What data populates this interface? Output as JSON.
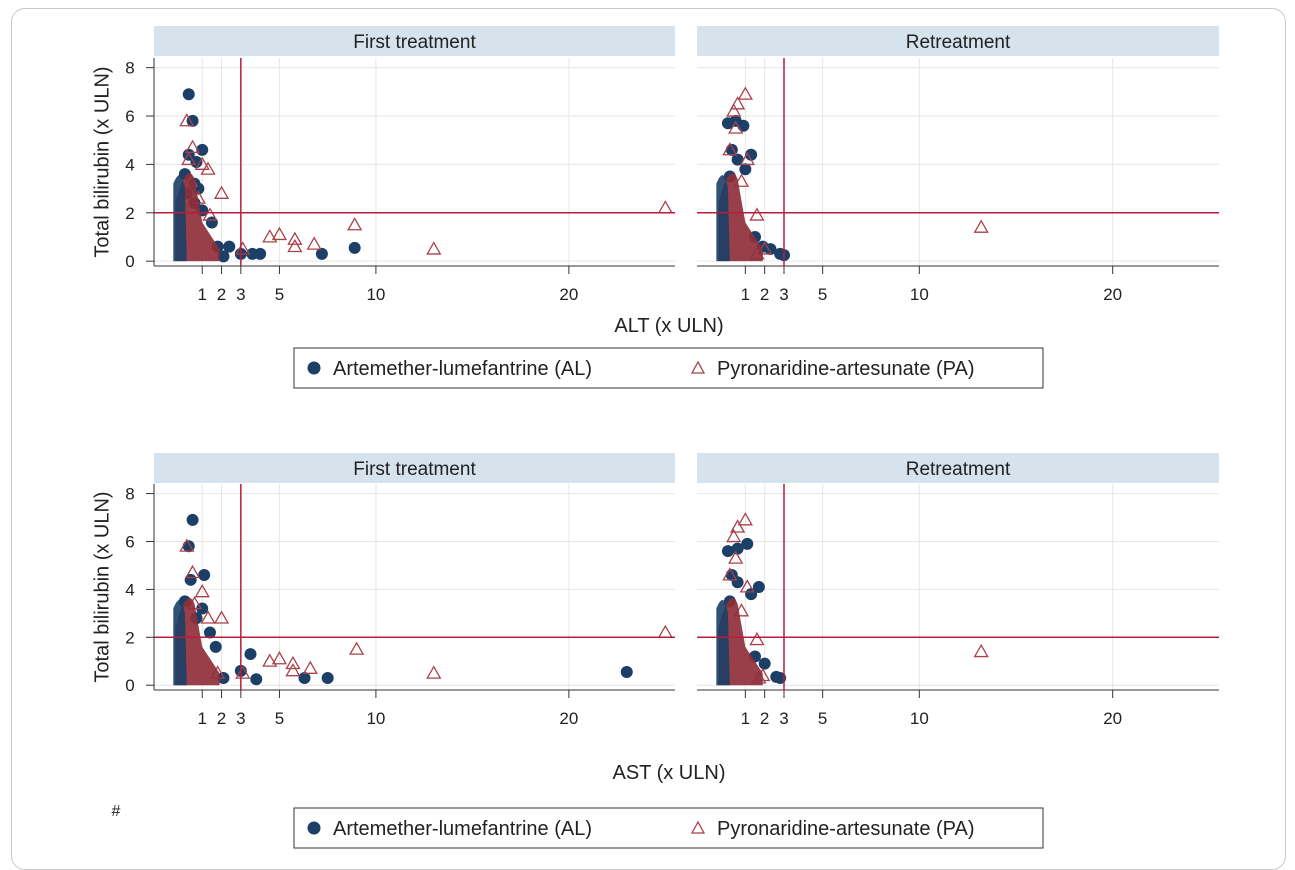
{
  "colors": {
    "al": "#1b3f66",
    "pa_stroke": "#a8424a",
    "pa_fill": "#8f2f3b",
    "refline": "#b81c3d",
    "strip": "#d6e3ec",
    "grid": "#e6e6e6"
  },
  "footnote": "#",
  "chart_data": [
    {
      "type": "scatter",
      "xlabel": "ALT (x ULN)",
      "ylabel": "Total bilirubin (x ULN)",
      "xlim": [
        -1.5,
        25.5
      ],
      "ylim": [
        -0.2,
        8.4
      ],
      "xticks": [
        1,
        2,
        3,
        5,
        10,
        20
      ],
      "yticks": [
        0,
        2,
        4,
        6,
        8
      ],
      "reference_lines": {
        "x": 3,
        "y": 2
      },
      "grid": true,
      "legend": {
        "position": "bottom",
        "entries": [
          "Artemether-lumefantrine (AL)",
          "Pyronaridine-artesunate (PA)"
        ]
      },
      "panels": [
        {
          "title": "First treatment",
          "series": [
            {
              "name": "Artemether-lumefantrine (AL)",
              "marker": "circle",
              "points": [
                [
                  0.3,
                  6.9
                ],
                [
                  0.5,
                  5.8
                ],
                [
                  1.0,
                  4.6
                ],
                [
                  0.3,
                  4.4
                ],
                [
                  0.7,
                  4.1
                ],
                [
                  0.1,
                  3.6
                ],
                [
                  1.0,
                  2.1
                ],
                [
                  0.6,
                  2.4
                ],
                [
                  1.5,
                  1.6
                ],
                [
                  1.8,
                  0.6
                ],
                [
                  2.4,
                  0.6
                ],
                [
                  2.1,
                  0.2
                ],
                [
                  3.0,
                  0.3
                ],
                [
                  3.6,
                  0.3
                ],
                [
                  4.0,
                  0.3
                ],
                [
                  7.2,
                  0.3
                ],
                [
                  8.9,
                  0.55
                ],
                [
                  0.6,
                  3.2
                ],
                [
                  0.2,
                  2.8
                ],
                [
                  0.8,
                  3.0
                ]
              ]
            },
            {
              "name": "Pyronaridine-artesunate (PA)",
              "marker": "triangle",
              "points": [
                [
                  0.2,
                  5.8
                ],
                [
                  0.5,
                  4.7
                ],
                [
                  1.0,
                  4.0
                ],
                [
                  1.3,
                  3.8
                ],
                [
                  0.4,
                  3.3
                ],
                [
                  1.4,
                  1.9
                ],
                [
                  2.0,
                  2.8
                ],
                [
                  3.1,
                  0.5
                ],
                [
                  4.5,
                  1.0
                ],
                [
                  5.0,
                  1.1
                ],
                [
                  5.8,
                  0.9
                ],
                [
                  5.8,
                  0.6
                ],
                [
                  6.8,
                  0.7
                ],
                [
                  8.9,
                  1.5
                ],
                [
                  13.0,
                  0.5
                ],
                [
                  25.0,
                  2.2
                ],
                [
                  0.8,
                  2.6
                ],
                [
                  0.3,
                  4.2
                ]
              ]
            }
          ]
        },
        {
          "title": "Retreatment",
          "series": [
            {
              "name": "Artemether-lumefantrine (AL)",
              "marker": "circle",
              "points": [
                [
                  0.1,
                  5.7
                ],
                [
                  0.5,
                  5.8
                ],
                [
                  0.9,
                  5.6
                ],
                [
                  1.3,
                  4.4
                ],
                [
                  0.3,
                  4.6
                ],
                [
                  0.6,
                  4.2
                ],
                [
                  1.0,
                  3.8
                ],
                [
                  1.9,
                  0.6
                ],
                [
                  2.3,
                  0.5
                ],
                [
                  2.8,
                  0.3
                ],
                [
                  3.0,
                  0.25
                ],
                [
                  0.2,
                  3.5
                ],
                [
                  1.5,
                  1.0
                ]
              ]
            },
            {
              "name": "Pyronaridine-artesunate (PA)",
              "marker": "triangle",
              "points": [
                [
                  1.0,
                  6.9
                ],
                [
                  0.6,
                  6.5
                ],
                [
                  0.4,
                  6.2
                ],
                [
                  0.2,
                  4.6
                ],
                [
                  1.1,
                  4.2
                ],
                [
                  1.6,
                  1.9
                ],
                [
                  2.0,
                  0.5
                ],
                [
                  1.6,
                  0.3
                ],
                [
                  13.2,
                  1.4
                ],
                [
                  0.5,
                  5.5
                ],
                [
                  0.8,
                  3.3
                ]
              ]
            }
          ]
        }
      ]
    },
    {
      "type": "scatter",
      "xlabel": "AST (x ULN)",
      "ylabel": "Total bilirubin (x ULN)",
      "xlim": [
        -1.5,
        25.5
      ],
      "ylim": [
        -0.2,
        8.4
      ],
      "xticks": [
        1,
        2,
        3,
        5,
        10,
        20
      ],
      "yticks": [
        0,
        2,
        4,
        6,
        8
      ],
      "reference_lines": {
        "x": 3,
        "y": 2
      },
      "grid": true,
      "legend": {
        "position": "bottom",
        "entries": [
          "Artemether-lumefantrine (AL)",
          "Pyronaridine-artesunate (PA)"
        ]
      },
      "panels": [
        {
          "title": "First treatment",
          "series": [
            {
              "name": "Artemether-lumefantrine (AL)",
              "marker": "circle",
              "points": [
                [
                  0.5,
                  6.9
                ],
                [
                  0.3,
                  5.8
                ],
                [
                  1.1,
                  4.6
                ],
                [
                  0.4,
                  4.4
                ],
                [
                  0.1,
                  3.5
                ],
                [
                  1.0,
                  3.2
                ],
                [
                  1.7,
                  1.6
                ],
                [
                  2.1,
                  0.3
                ],
                [
                  3.0,
                  0.6
                ],
                [
                  3.5,
                  1.3
                ],
                [
                  3.8,
                  0.25
                ],
                [
                  6.3,
                  0.3
                ],
                [
                  7.5,
                  0.3
                ],
                [
                  23.0,
                  0.55
                ],
                [
                  0.7,
                  2.8
                ],
                [
                  1.4,
                  2.2
                ]
              ]
            },
            {
              "name": "Pyronaridine-artesunate (PA)",
              "marker": "triangle",
              "points": [
                [
                  0.2,
                  5.8
                ],
                [
                  0.5,
                  4.7
                ],
                [
                  1.0,
                  3.9
                ],
                [
                  1.3,
                  2.8
                ],
                [
                  1.8,
                  0.5
                ],
                [
                  2.0,
                  2.8
                ],
                [
                  3.1,
                  0.5
                ],
                [
                  4.5,
                  1.0
                ],
                [
                  5.0,
                  1.1
                ],
                [
                  5.7,
                  0.9
                ],
                [
                  5.7,
                  0.6
                ],
                [
                  6.6,
                  0.7
                ],
                [
                  9.0,
                  1.5
                ],
                [
                  13.0,
                  0.5
                ],
                [
                  25.0,
                  2.2
                ],
                [
                  0.6,
                  3.4
                ]
              ]
            }
          ]
        },
        {
          "title": "Retreatment",
          "series": [
            {
              "name": "Artemether-lumefantrine (AL)",
              "marker": "circle",
              "points": [
                [
                  0.1,
                  5.6
                ],
                [
                  0.6,
                  5.7
                ],
                [
                  1.1,
                  5.9
                ],
                [
                  1.7,
                  4.1
                ],
                [
                  0.3,
                  4.6
                ],
                [
                  0.6,
                  4.3
                ],
                [
                  1.3,
                  3.8
                ],
                [
                  2.0,
                  0.9
                ],
                [
                  2.6,
                  0.35
                ],
                [
                  2.8,
                  0.3
                ],
                [
                  0.2,
                  3.5
                ],
                [
                  1.5,
                  1.2
                ]
              ]
            },
            {
              "name": "Pyronaridine-artesunate (PA)",
              "marker": "triangle",
              "points": [
                [
                  1.0,
                  6.9
                ],
                [
                  0.6,
                  6.6
                ],
                [
                  0.4,
                  6.2
                ],
                [
                  0.2,
                  4.6
                ],
                [
                  1.1,
                  4.1
                ],
                [
                  1.6,
                  1.9
                ],
                [
                  1.9,
                  0.4
                ],
                [
                  1.7,
                  0.3
                ],
                [
                  13.2,
                  1.4
                ],
                [
                  0.5,
                  5.3
                ],
                [
                  0.8,
                  3.1
                ]
              ]
            }
          ]
        }
      ]
    }
  ]
}
